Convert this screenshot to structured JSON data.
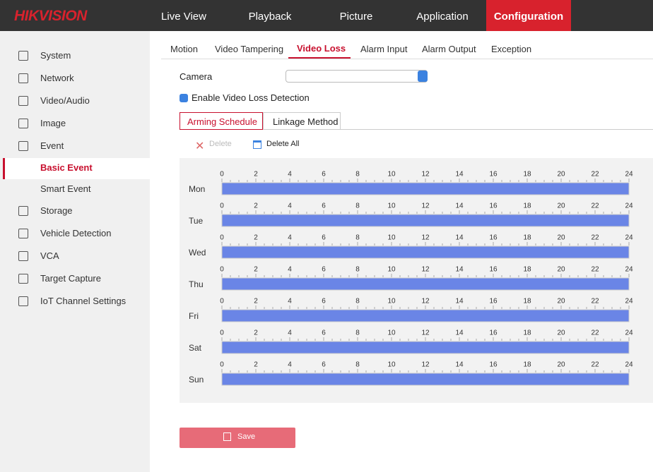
{
  "header": {
    "logo": "HIKVISION",
    "nav": [
      "Live View",
      "Playback",
      "Picture",
      "Application",
      "Configuration"
    ]
  },
  "sidebar": {
    "items": [
      "System",
      "Network",
      "Video/Audio",
      "Image",
      "Event"
    ],
    "sub_items": [
      "Basic Event",
      "Smart Event"
    ],
    "more_items": [
      "Storage",
      "Vehicle Detection",
      "VCA",
      "Target Capture",
      "IoT Channel Settings"
    ]
  },
  "tabs": [
    "Motion",
    "Video Tampering",
    "Video Loss",
    "Alarm Input",
    "Alarm Output",
    "Exception"
  ],
  "form": {
    "camera_label": "Camera",
    "enable_label": "Enable Video Loss Detection"
  },
  "subtabs": [
    "Arming Schedule",
    "Linkage Method"
  ],
  "toolbar": {
    "delete": "Delete",
    "delete_all": "Delete All"
  },
  "schedule": {
    "ticks": [
      0,
      2,
      4,
      6,
      8,
      10,
      12,
      14,
      16,
      18,
      20,
      22,
      24
    ],
    "days": [
      {
        "label": "Mon",
        "segments": [
          {
            "start": 0,
            "end": 24
          }
        ]
      },
      {
        "label": "Tue",
        "segments": [
          {
            "start": 0,
            "end": 24
          }
        ]
      },
      {
        "label": "Wed",
        "segments": [
          {
            "start": 0,
            "end": 24
          }
        ]
      },
      {
        "label": "Thu",
        "segments": [
          {
            "start": 0,
            "end": 24
          }
        ]
      },
      {
        "label": "Fri",
        "segments": [
          {
            "start": 0,
            "end": 24
          }
        ]
      },
      {
        "label": "Sat",
        "segments": [
          {
            "start": 0,
            "end": 24
          }
        ]
      },
      {
        "label": "Sun",
        "segments": [
          {
            "start": 0,
            "end": 24
          }
        ]
      }
    ]
  },
  "save": "Save"
}
